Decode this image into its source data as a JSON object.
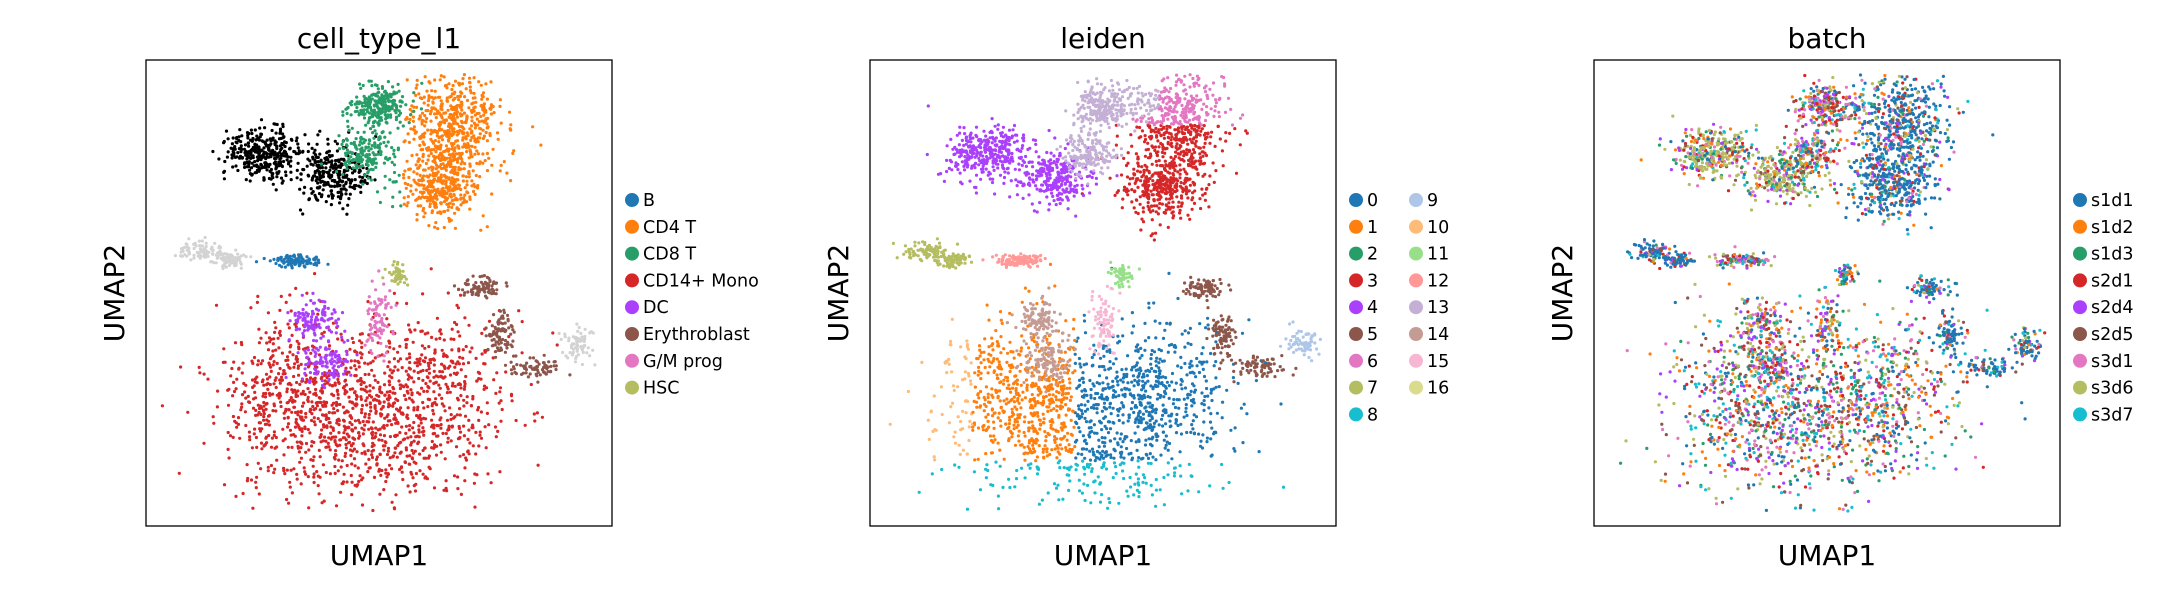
{
  "chart_data": [
    {
      "type": "scatter",
      "title": "cell_type_l1",
      "xlabel": "UMAP1",
      "ylabel": "UMAP2",
      "grid": false,
      "legend_position": "right",
      "legend_columns": 1,
      "series": [
        {
          "name": "B",
          "color": "#1f77b4"
        },
        {
          "name": "CD4 T",
          "color": "#ff7f0e"
        },
        {
          "name": "CD8 T",
          "color": "#279e68"
        },
        {
          "name": "CD14+ Mono",
          "color": "#d62728"
        },
        {
          "name": "DC",
          "color": "#aa40fc"
        },
        {
          "name": "Erythroblast",
          "color": "#8c564b"
        },
        {
          "name": "G/M prog",
          "color": "#e377c2"
        },
        {
          "name": "HSC",
          "color": "#b5bd61"
        }
      ]
    },
    {
      "type": "scatter",
      "title": "leiden",
      "xlabel": "UMAP1",
      "ylabel": "UMAP2",
      "grid": false,
      "legend_position": "right",
      "legend_columns": 2,
      "series": [
        {
          "name": "0",
          "color": "#1f77b4"
        },
        {
          "name": "1",
          "color": "#ff7f0e"
        },
        {
          "name": "2",
          "color": "#279e68"
        },
        {
          "name": "3",
          "color": "#d62728"
        },
        {
          "name": "4",
          "color": "#aa40fc"
        },
        {
          "name": "5",
          "color": "#8c564b"
        },
        {
          "name": "6",
          "color": "#e377c2"
        },
        {
          "name": "7",
          "color": "#b5bd61"
        },
        {
          "name": "8",
          "color": "#17becf"
        },
        {
          "name": "9",
          "color": "#aec7e8"
        },
        {
          "name": "10",
          "color": "#ffbb78"
        },
        {
          "name": "11",
          "color": "#98df8a"
        },
        {
          "name": "12",
          "color": "#ff9896"
        },
        {
          "name": "13",
          "color": "#c5b0d5"
        },
        {
          "name": "14",
          "color": "#c49c94"
        },
        {
          "name": "15",
          "color": "#f7b6d2"
        },
        {
          "name": "16",
          "color": "#dbdb8d"
        }
      ]
    },
    {
      "type": "scatter",
      "title": "batch",
      "xlabel": "UMAP1",
      "ylabel": "UMAP2",
      "grid": false,
      "legend_position": "right",
      "legend_columns": 1,
      "series": [
        {
          "name": "s1d1",
          "color": "#1f77b4"
        },
        {
          "name": "s1d2",
          "color": "#ff7f0e"
        },
        {
          "name": "s1d3",
          "color": "#279e68"
        },
        {
          "name": "s2d1",
          "color": "#d62728"
        },
        {
          "name": "s2d4",
          "color": "#aa40fc"
        },
        {
          "name": "s2d5",
          "color": "#8c564b"
        },
        {
          "name": "s3d1",
          "color": "#e377c2"
        },
        {
          "name": "s3d6",
          "color": "#b5bd61"
        },
        {
          "name": "s3d7",
          "color": "#17becf"
        }
      ]
    }
  ]
}
